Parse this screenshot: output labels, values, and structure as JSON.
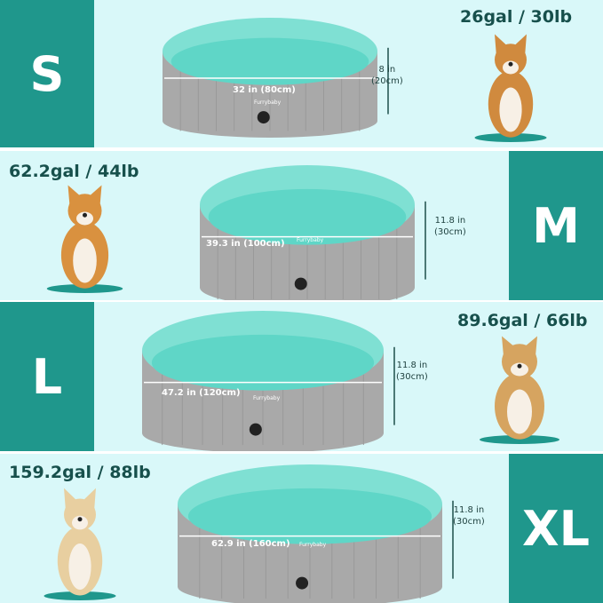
{
  "colors": {
    "background": "#d9f8f9",
    "accent": "#1f978c",
    "pool_outer": "#a9a9a9",
    "pool_inner": "#5fd6c7"
  },
  "brand": "Furrybaby",
  "sizes": [
    {
      "label": "S",
      "capacity": "26gal / 30lb",
      "width": "32 in (80cm)",
      "height_in": "8 in",
      "height_cm": "(20cm)"
    },
    {
      "label": "M",
      "capacity": "62.2gal / 44lb",
      "width": "39.3 in (100cm)",
      "height_in": "11.8 in",
      "height_cm": "(30cm)"
    },
    {
      "label": "L",
      "capacity": "89.6gal / 66lb",
      "width": "47.2 in (120cm)",
      "height_in": "11.8 in",
      "height_cm": "(30cm)"
    },
    {
      "label": "XL",
      "capacity": "159.2gal / 88lb",
      "width": "62.9 in (160cm)",
      "height_in": "11.8 in",
      "height_cm": "(30cm)"
    }
  ]
}
